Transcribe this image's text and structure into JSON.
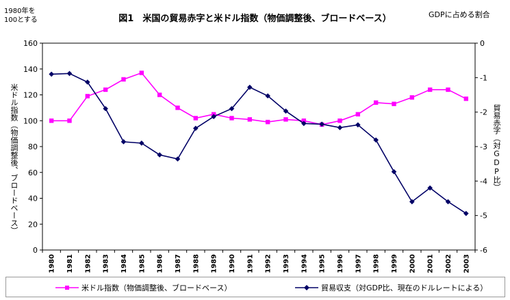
{
  "notes": {
    "left_unit_line1": "1980年を",
    "left_unit_line2": "100とする",
    "right_unit": "GDPに占める割合"
  },
  "chart_data": {
    "type": "line",
    "title": "図1　米国の貿易赤字と米ドル指数（物価調整後、ブロードベース）",
    "x": [
      "1980",
      "1981",
      "1982",
      "1983",
      "1984",
      "1985",
      "1986",
      "1987",
      "1988",
      "1989",
      "1990",
      "1991",
      "1992",
      "1993",
      "1994",
      "1995",
      "1996",
      "1997",
      "1998",
      "1999",
      "2000",
      "2001",
      "2002",
      "2003"
    ],
    "ylabel_left": "米ドル指数（物価調整後、ブロードベース）",
    "ylabel_right": "貿易赤字（対GDP比）",
    "ylim_left": [
      0,
      160
    ],
    "yticks_left": [
      "0",
      "20",
      "40",
      "60",
      "80",
      "100",
      "120",
      "140",
      "160"
    ],
    "ylim_right": [
      -6,
      0
    ],
    "yticks_right": [
      "-6",
      "-5",
      "-4",
      "-3",
      "-2",
      "-1",
      "0"
    ],
    "grid": false,
    "legend_position": "bottom",
    "series": [
      {
        "name": "米ドル指数（物価調整後、ブロードベース）",
        "axis": "left",
        "color": "#ff00ff",
        "marker": "square",
        "values": [
          100,
          100,
          119,
          124,
          132,
          137,
          120,
          110,
          102,
          105,
          102,
          101,
          99,
          101,
          100,
          97,
          100,
          105,
          114,
          113,
          118,
          124,
          124,
          117
        ]
      },
      {
        "name": "貿易収支（対GDP比、現在のドルレートによる）",
        "axis": "right",
        "color": "#000066",
        "marker": "diamond",
        "values": [
          -0.9,
          -0.88,
          -1.13,
          -1.9,
          -2.86,
          -2.9,
          -3.24,
          -3.36,
          -2.47,
          -2.13,
          -1.9,
          -1.28,
          -1.53,
          -1.97,
          -2.33,
          -2.35,
          -2.45,
          -2.37,
          -2.81,
          -3.73,
          -4.6,
          -4.2,
          -4.6,
          -4.94
        ]
      }
    ]
  }
}
